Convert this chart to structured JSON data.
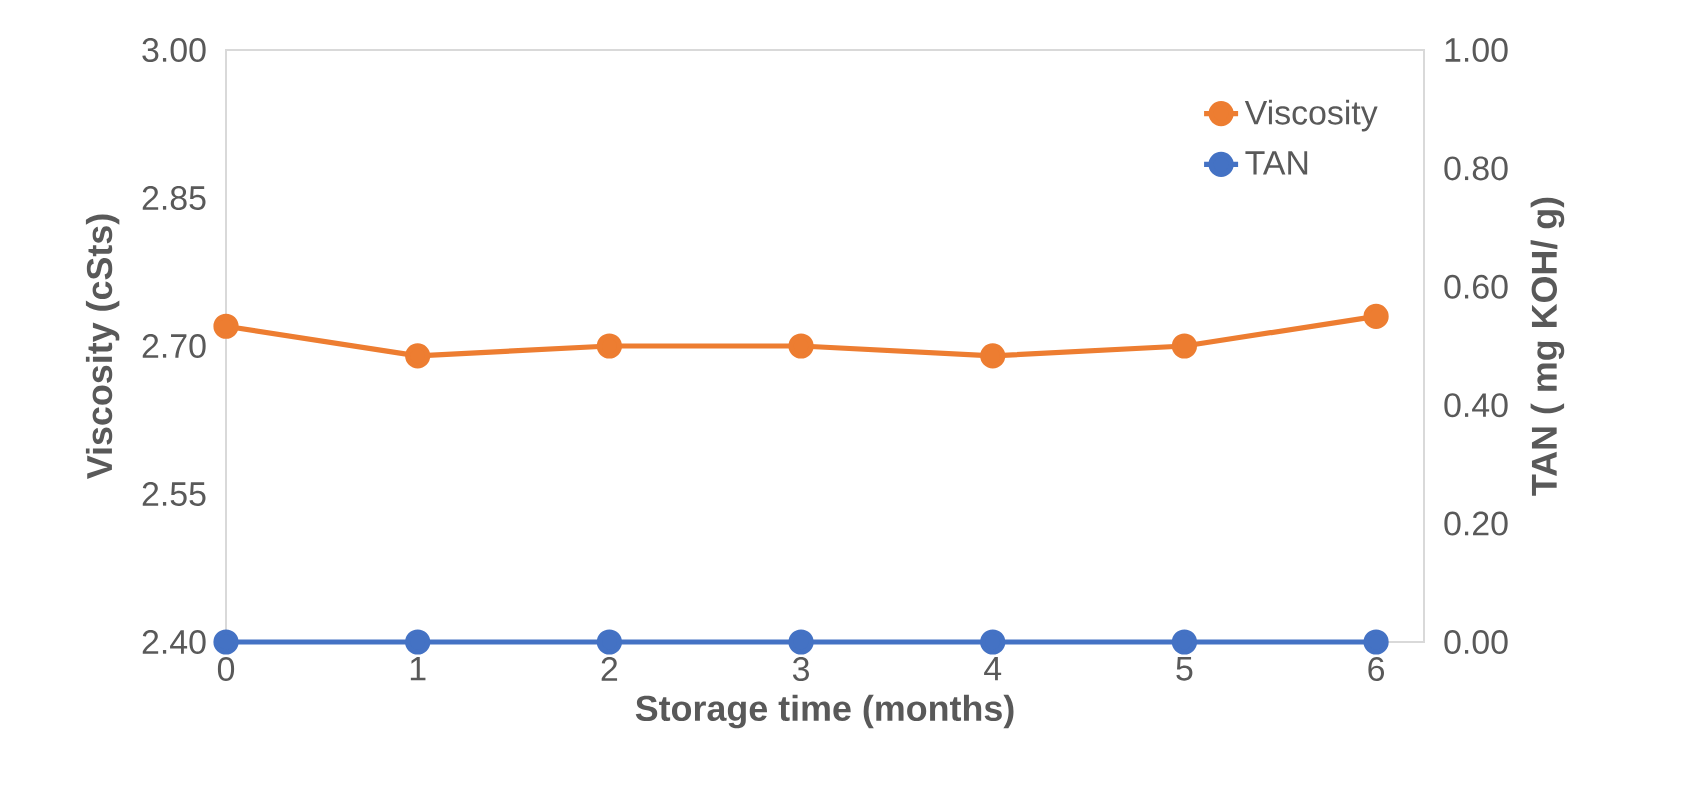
{
  "chart_data": {
    "type": "line",
    "xlabel": "Storage time (months)",
    "ylabel": "Viscosity (cSts)",
    "y2label": "TAN ( mg KOH/ g)",
    "x": [
      0,
      1,
      2,
      3,
      4,
      5,
      6
    ],
    "series": [
      {
        "name": "Viscosity",
        "color": "#ed7d31",
        "values": [
          2.72,
          2.69,
          2.7,
          2.7,
          2.69,
          2.7,
          2.73
        ]
      },
      {
        "name": "TAN",
        "color": "#4472c4",
        "axis": "y2",
        "values": [
          0,
          0,
          0,
          0,
          0,
          0,
          0
        ]
      }
    ],
    "xlim": [
      0,
      6.25
    ],
    "xticks": [
      0,
      1,
      2,
      3,
      4,
      5,
      6
    ],
    "ylim": [
      2.4,
      3.0
    ],
    "yticks": [
      {
        "value": 2.4,
        "label": "2.40"
      },
      {
        "value": 2.55,
        "label": "2.55"
      },
      {
        "value": 2.7,
        "label": "2.70"
      },
      {
        "value": 2.85,
        "label": "2.85"
      },
      {
        "value": 3.0,
        "label": "3.00"
      }
    ],
    "y2lim": [
      0,
      1
    ],
    "y2ticks": [
      {
        "value": 0,
        "label": "0.00"
      },
      {
        "value": 0.2,
        "label": "0.20"
      },
      {
        "value": 0.4,
        "label": "0.40"
      },
      {
        "value": 0.6,
        "label": "0.60"
      },
      {
        "value": 0.8,
        "label": "0.80"
      },
      {
        "value": 1,
        "label": "1.00"
      }
    ],
    "grid": false,
    "legend": "top right",
    "marker": "circle",
    "line_style": "solid"
  }
}
